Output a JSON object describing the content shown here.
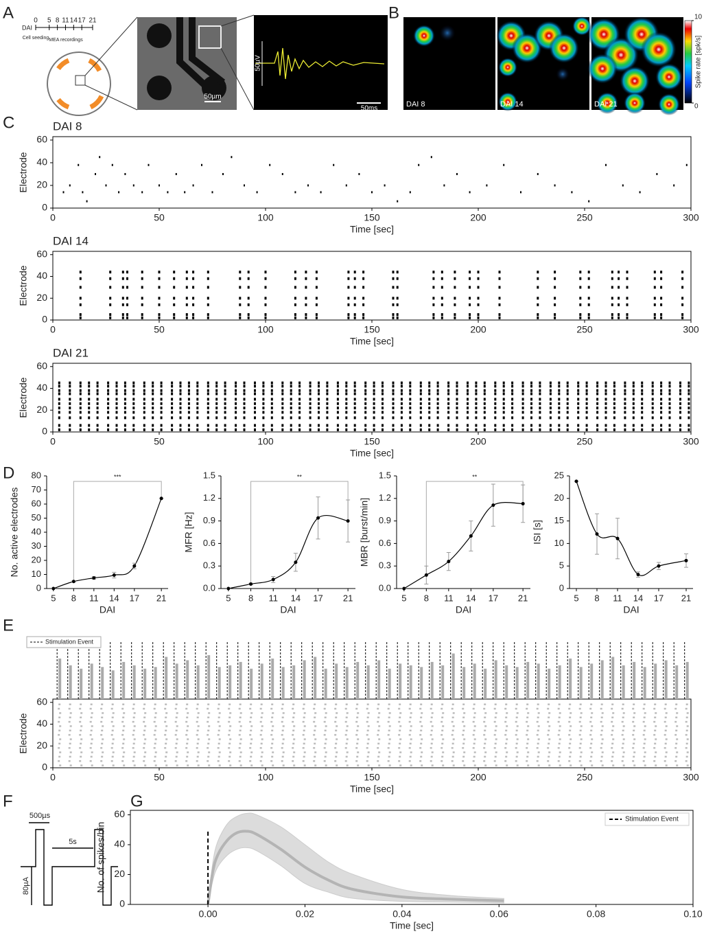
{
  "panel_labels": [
    "A",
    "B",
    "C",
    "D",
    "E",
    "F",
    "G"
  ],
  "panel_a": {
    "timeline_label": "DAI",
    "days": [
      0,
      5,
      8,
      11,
      14,
      17,
      21
    ],
    "seeding_label": "Cell seeding",
    "recording_label": "MEA recordings",
    "scale_image": "50µm",
    "scale_voltage": "50µV",
    "scale_time": "50ms"
  },
  "panel_b": {
    "maps": [
      "DAI 8",
      "DAI 14",
      "DAI 21"
    ],
    "colorbar_label": "Spike rate [spk/s]",
    "colorbar_ticks": [
      0,
      10
    ]
  },
  "panel_f": {
    "pulse_width": "500µs",
    "interval": "5s",
    "amplitude": "80µA"
  },
  "chart_data": [
    {
      "type": "scatter",
      "title": "DAI 8",
      "xlabel": "Time [sec]",
      "ylabel": "Electrode",
      "xlim": [
        0,
        300
      ],
      "ylim": [
        0,
        63
      ],
      "xticks": [
        0,
        50,
        100,
        150,
        200,
        250,
        300
      ],
      "yticks": [
        0,
        20,
        40,
        60
      ],
      "x": [
        5,
        8,
        12,
        14,
        16,
        20,
        22,
        25,
        28,
        31,
        34,
        38,
        42,
        45,
        50,
        54,
        58,
        62,
        66,
        70,
        75,
        80,
        84,
        90,
        96,
        102,
        108,
        114,
        120,
        126,
        132,
        138,
        144,
        150,
        156,
        162,
        168,
        172,
        178,
        184,
        190,
        196,
        204,
        212,
        220,
        228,
        236,
        244,
        252,
        260,
        268,
        276,
        284,
        292,
        298
      ],
      "y": [
        14,
        20,
        38,
        14,
        6,
        30,
        45,
        20,
        38,
        14,
        30,
        20,
        14,
        38,
        20,
        14,
        30,
        14,
        20,
        38,
        14,
        30,
        45,
        20,
        14,
        38,
        30,
        14,
        20,
        14,
        38,
        20,
        30,
        14,
        20,
        6,
        14,
        38,
        45,
        20,
        30,
        14,
        20,
        38,
        14,
        30,
        20,
        14,
        6,
        38,
        20,
        14,
        30,
        20,
        38
      ]
    },
    {
      "type": "raster",
      "title": "DAI 14",
      "xlabel": "Time [sec]",
      "ylabel": "Electrode",
      "xlim": [
        0,
        300
      ],
      "ylim": [
        0,
        63
      ],
      "xticks": [
        0,
        50,
        100,
        150,
        200,
        250,
        300
      ],
      "yticks": [
        0,
        20,
        40,
        60
      ],
      "times": [
        13,
        27,
        33,
        35,
        42,
        50,
        57,
        63,
        66,
        73,
        88,
        92,
        100,
        114,
        119,
        124,
        139,
        142,
        146,
        160,
        162,
        179,
        183,
        189,
        196,
        200,
        210,
        228,
        236,
        248,
        252,
        263,
        266,
        270,
        283,
        286,
        296
      ],
      "electrodes": [
        2,
        5,
        14,
        20,
        30,
        38,
        44
      ]
    },
    {
      "type": "raster",
      "title": "DAI 21",
      "xlabel": "Time [sec]",
      "ylabel": "Electrode",
      "xlim": [
        0,
        300
      ],
      "ylim": [
        0,
        63
      ],
      "xticks": [
        0,
        50,
        100,
        150,
        200,
        250,
        300
      ],
      "yticks": [
        0,
        20,
        40,
        60
      ],
      "times": [
        3,
        8,
        13,
        17,
        21,
        26,
        30,
        34,
        38,
        43,
        47,
        51,
        56,
        60,
        64,
        68,
        73,
        77,
        81,
        86,
        90,
        95,
        99,
        103,
        108,
        112,
        116,
        121,
        125,
        129,
        134,
        138,
        142,
        147,
        151,
        155,
        160,
        164,
        168,
        173,
        177,
        181,
        186,
        190,
        195,
        199,
        203,
        208,
        212,
        216,
        221,
        225,
        229,
        234,
        238,
        242,
        247,
        251,
        256,
        260,
        264,
        269,
        273,
        277,
        282,
        286,
        290,
        295,
        299
      ],
      "electrodes": [
        2,
        6,
        13,
        18,
        22,
        26,
        30,
        35,
        38,
        42,
        45
      ]
    },
    {
      "type": "line",
      "xlabel": "DAI",
      "ylabel": "No. active electrodes",
      "x": [
        5,
        8,
        11,
        14,
        17,
        21
      ],
      "values": [
        0,
        5,
        7.5,
        9.5,
        16,
        64
      ],
      "errors": [
        0,
        0.5,
        1,
        2,
        2,
        0
      ],
      "xlim": [
        4,
        22
      ],
      "ylim": [
        0,
        80
      ],
      "xticks": [
        5,
        8,
        11,
        14,
        17,
        21
      ],
      "yticks": [
        0,
        10,
        20,
        30,
        40,
        50,
        60,
        70,
        80
      ],
      "significance": "***",
      "bracket": [
        8,
        21
      ]
    },
    {
      "type": "line",
      "xlabel": "DAI",
      "ylabel": "MFR [Hz]",
      "x": [
        5,
        8,
        11,
        14,
        17,
        21
      ],
      "values": [
        0,
        0.06,
        0.12,
        0.35,
        0.94,
        0.9
      ],
      "errors": [
        0,
        0.01,
        0.04,
        0.12,
        0.28,
        0.28
      ],
      "xlim": [
        4,
        22
      ],
      "ylim": [
        0,
        1.5
      ],
      "xticks": [
        5,
        8,
        11,
        14,
        17,
        21
      ],
      "yticks": [
        {
          "value": 0,
          "label": "0.0"
        },
        {
          "value": 0.3,
          "label": "0.3"
        },
        {
          "value": 0.6,
          "label": "0.6"
        },
        {
          "value": 0.9,
          "label": "0.9"
        },
        {
          "value": 1.2,
          "label": "1.2"
        },
        {
          "value": 1.5,
          "label": "1.5"
        }
      ],
      "significance": "**",
      "bracket": [
        8,
        21
      ]
    },
    {
      "type": "line",
      "xlabel": "DAI",
      "ylabel": "MBR [burst/min]",
      "x": [
        5,
        8,
        11,
        14,
        17,
        21
      ],
      "values": [
        0,
        0.18,
        0.36,
        0.7,
        1.11,
        1.13
      ],
      "errors": [
        0,
        0.12,
        0.12,
        0.2,
        0.28,
        0.25
      ],
      "xlim": [
        4,
        22
      ],
      "ylim": [
        0,
        1.5
      ],
      "xticks": [
        5,
        8,
        11,
        14,
        17,
        21
      ],
      "yticks": [
        {
          "value": 0,
          "label": "0.0"
        },
        {
          "value": 0.3,
          "label": "0.3"
        },
        {
          "value": 0.6,
          "label": "0.6"
        },
        {
          "value": 0.9,
          "label": "0.9"
        },
        {
          "value": 1.2,
          "label": "1.2"
        },
        {
          "value": 1.5,
          "label": "1.5"
        }
      ],
      "significance": "**",
      "bracket": [
        8,
        21
      ]
    },
    {
      "type": "line",
      "xlabel": "DAI",
      "ylabel": "ISI [s]",
      "x": [
        5,
        8,
        11,
        14,
        17,
        21
      ],
      "values": [
        23.8,
        12.1,
        11.1,
        3.1,
        5,
        6.2
      ],
      "errors": [
        0,
        4.5,
        4.5,
        0.6,
        0.8,
        1.5
      ],
      "xlim": [
        4,
        22
      ],
      "ylim": [
        0,
        25
      ],
      "xticks": [
        5,
        8,
        11,
        14,
        17,
        21
      ],
      "yticks": [
        0,
        5,
        10,
        15,
        20,
        25
      ]
    },
    {
      "type": "stim",
      "xlabel": "Time [sec]",
      "ylabel": "Electrode",
      "legend": "Stimulation Event",
      "xlim": [
        0,
        300
      ],
      "ylim": [
        0,
        63
      ],
      "xticks": [
        0,
        50,
        100,
        150,
        200,
        250,
        300
      ],
      "yticks": [
        0,
        20,
        40,
        60
      ],
      "stim_times": [
        2,
        7,
        12,
        17,
        22,
        27,
        32,
        37,
        42,
        47,
        52,
        57,
        62,
        67,
        72,
        77,
        82,
        87,
        92,
        97,
        102,
        107,
        112,
        117,
        122,
        127,
        132,
        137,
        142,
        147,
        152,
        157,
        162,
        167,
        172,
        177,
        182,
        187,
        192,
        197,
        202,
        207,
        212,
        217,
        222,
        227,
        232,
        237,
        242,
        247,
        252,
        257,
        262,
        267,
        272,
        277,
        282,
        287,
        292,
        297
      ],
      "responses": [
        48,
        40,
        36,
        42,
        38,
        34,
        44,
        40,
        36,
        38,
        50,
        42,
        46,
        40,
        52,
        38,
        40,
        44,
        36,
        42,
        48,
        38,
        40,
        46,
        50,
        36,
        42,
        38,
        44,
        40,
        46,
        36,
        42,
        40,
        38,
        44,
        40,
        54,
        38,
        42,
        36,
        46,
        40,
        38,
        44,
        42,
        36,
        40,
        48,
        38,
        42,
        46,
        50,
        40,
        44,
        38,
        42,
        46,
        40,
        44
      ]
    },
    {
      "type": "band",
      "xlabel": "Time [sec]",
      "ylabel": "No. of spikes/bin",
      "legend": "Stimulation Event",
      "color": "#b4b4b4",
      "band_color": "#dcdcdc",
      "xlim": [
        -0.016,
        0.1
      ],
      "ylim": [
        0,
        63
      ],
      "xticks": [
        {
          "value": 0,
          "label": "0.00"
        },
        {
          "value": 0.02,
          "label": "0.02"
        },
        {
          "value": 0.04,
          "label": "0.04"
        },
        {
          "value": 0.06,
          "label": "0.06"
        },
        {
          "value": 0.08,
          "label": "0.08"
        },
        {
          "value": 0.1,
          "label": "0.10"
        }
      ],
      "yticks": [
        0,
        20,
        40,
        60
      ],
      "stim_x": 0,
      "stim_height": 50,
      "x": [
        0,
        0.001,
        0.002,
        0.004,
        0.006,
        0.008,
        0.01,
        0.015,
        0.02,
        0.025,
        0.03,
        0.04,
        0.05,
        0.061
      ],
      "values": [
        0,
        22,
        33,
        43,
        48,
        49,
        47,
        37,
        25,
        16,
        10,
        5,
        3.5,
        2.5
      ],
      "upper": [
        0,
        28,
        42,
        54,
        59,
        61,
        60,
        52,
        40,
        28,
        20,
        10,
        6,
        4
      ],
      "lower": [
        0,
        16,
        25,
        33,
        37,
        38,
        36,
        26,
        14,
        8,
        4,
        2,
        1.5,
        1
      ]
    }
  ]
}
